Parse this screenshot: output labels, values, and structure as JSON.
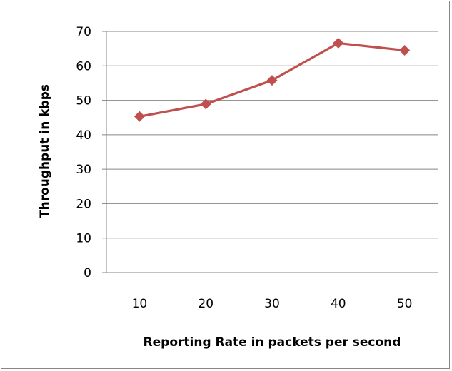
{
  "chart_data": {
    "type": "line",
    "title": "",
    "xlabel": "Reporting Rate in packets per second",
    "ylabel": "Throughput in kbps",
    "categories": [
      "10",
      "20",
      "30",
      "40",
      "50"
    ],
    "series": [
      {
        "values": [
          45.3,
          48.9,
          55.8,
          66.6,
          64.5
        ],
        "color": "#C0504D",
        "marker": "diamond"
      }
    ],
    "ylim": [
      0,
      70
    ],
    "yticks": [
      "0",
      "10",
      "20",
      "30",
      "40",
      "50",
      "60",
      "70"
    ],
    "grid": "horizontal",
    "legend": "none",
    "colors": {
      "gridline": "#868686",
      "axis": "#868686",
      "series": "#C0504D"
    }
  }
}
